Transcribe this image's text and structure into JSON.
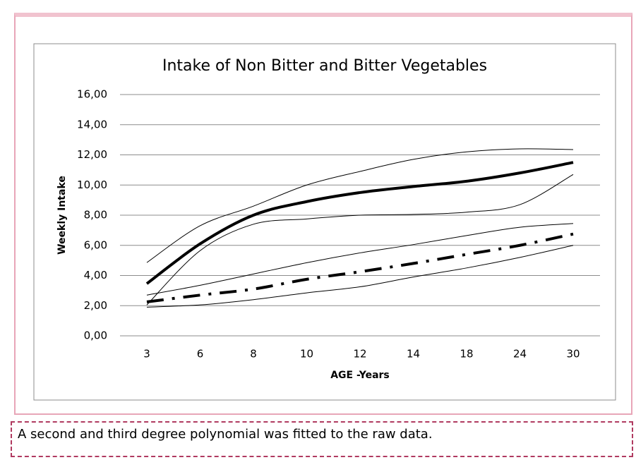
{
  "chart_data": {
    "type": "line",
    "title": "Intake of Non Bitter and Bitter  Vegetables",
    "x_label": "AGE -Years",
    "y_label": "Weekly Intake",
    "categories": [
      "3",
      "6",
      "8",
      "10",
      "12",
      "14",
      "18",
      "24",
      "30"
    ],
    "ylim": [
      0,
      16
    ],
    "yticks": [
      {
        "value": 0,
        "label": "0,00"
      },
      {
        "value": 2,
        "label": "2,00"
      },
      {
        "value": 4,
        "label": "4,00"
      },
      {
        "value": 6,
        "label": "6,00"
      },
      {
        "value": 8,
        "label": "8,00"
      },
      {
        "value": 10,
        "label": "10,00"
      },
      {
        "value": 12,
        "label": "12,00"
      },
      {
        "value": 14,
        "label": "14,00"
      },
      {
        "value": 16,
        "label": "16,00"
      }
    ],
    "grid": true,
    "series": [
      {
        "color": "#000000",
        "line_width": 4,
        "dash": "solid",
        "values": [
          3.46,
          6.1,
          8.0,
          8.9,
          9.5,
          9.9,
          10.25,
          10.8,
          11.5
        ]
      },
      {
        "color": "#000000",
        "line_width": 1,
        "dash": "solid",
        "values": [
          4.86,
          7.3,
          8.6,
          10.0,
          10.9,
          11.7,
          12.2,
          12.4,
          12.35
        ]
      },
      {
        "color": "#000000",
        "line_width": 1,
        "dash": "solid",
        "values": [
          2.05,
          5.65,
          7.4,
          7.75,
          8.0,
          8.05,
          8.2,
          8.7,
          10.7
        ]
      },
      {
        "color": "#000000",
        "line_width": 4,
        "dash": "dashdot",
        "values": [
          2.25,
          2.7,
          3.1,
          3.75,
          4.25,
          4.8,
          5.4,
          6.0,
          6.75
        ]
      },
      {
        "color": "#000000",
        "line_width": 1,
        "dash": "solid",
        "values": [
          2.7,
          3.35,
          4.1,
          4.85,
          5.5,
          6.05,
          6.65,
          7.2,
          7.45
        ]
      },
      {
        "color": "#000000",
        "line_width": 1,
        "dash": "solid",
        "values": [
          1.9,
          2.05,
          2.4,
          2.85,
          3.25,
          3.9,
          4.5,
          5.2,
          6.0
        ]
      }
    ]
  },
  "caption": "A second and third degree polynomial was fitted to the raw data."
}
